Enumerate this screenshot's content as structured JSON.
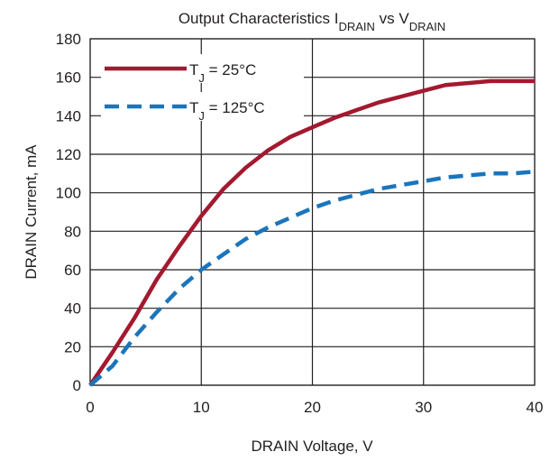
{
  "chart_data": {
    "type": "line",
    "title": "Output Characteristics IDRAIN vs VDRAIN",
    "x_label": "DRAIN Voltage, V",
    "y_label": "DRAIN Current, mA",
    "x": [
      0,
      2,
      4,
      6,
      8,
      10,
      12,
      14,
      16,
      18,
      20,
      22,
      24,
      26,
      28,
      30,
      32,
      34,
      36,
      38,
      40
    ],
    "series": [
      {
        "name": "TJ = 25°C",
        "color": "#a3192f",
        "dash": "solid",
        "values": [
          0,
          17,
          35,
          55,
          72,
          88,
          102,
          113,
          122,
          129,
          134,
          139,
          143,
          147,
          150,
          153,
          156,
          157,
          158,
          158,
          158
        ]
      },
      {
        "name": "TJ = 125°C",
        "color": "#1b75bb",
        "dash": "dashed",
        "values": [
          0,
          10,
          25,
          38,
          50,
          60,
          68,
          76,
          82,
          87,
          92,
          96,
          99,
          102,
          104,
          106,
          108,
          109,
          110,
          110,
          111
        ]
      }
    ],
    "xlim": [
      0,
      40
    ],
    "xticks": [
      0,
      10,
      20,
      30,
      40
    ],
    "ylim": [
      0,
      180
    ],
    "yticks": [
      0,
      20,
      40,
      60,
      80,
      100,
      120,
      140,
      160,
      180
    ],
    "grid": true,
    "legend": "upper left"
  }
}
